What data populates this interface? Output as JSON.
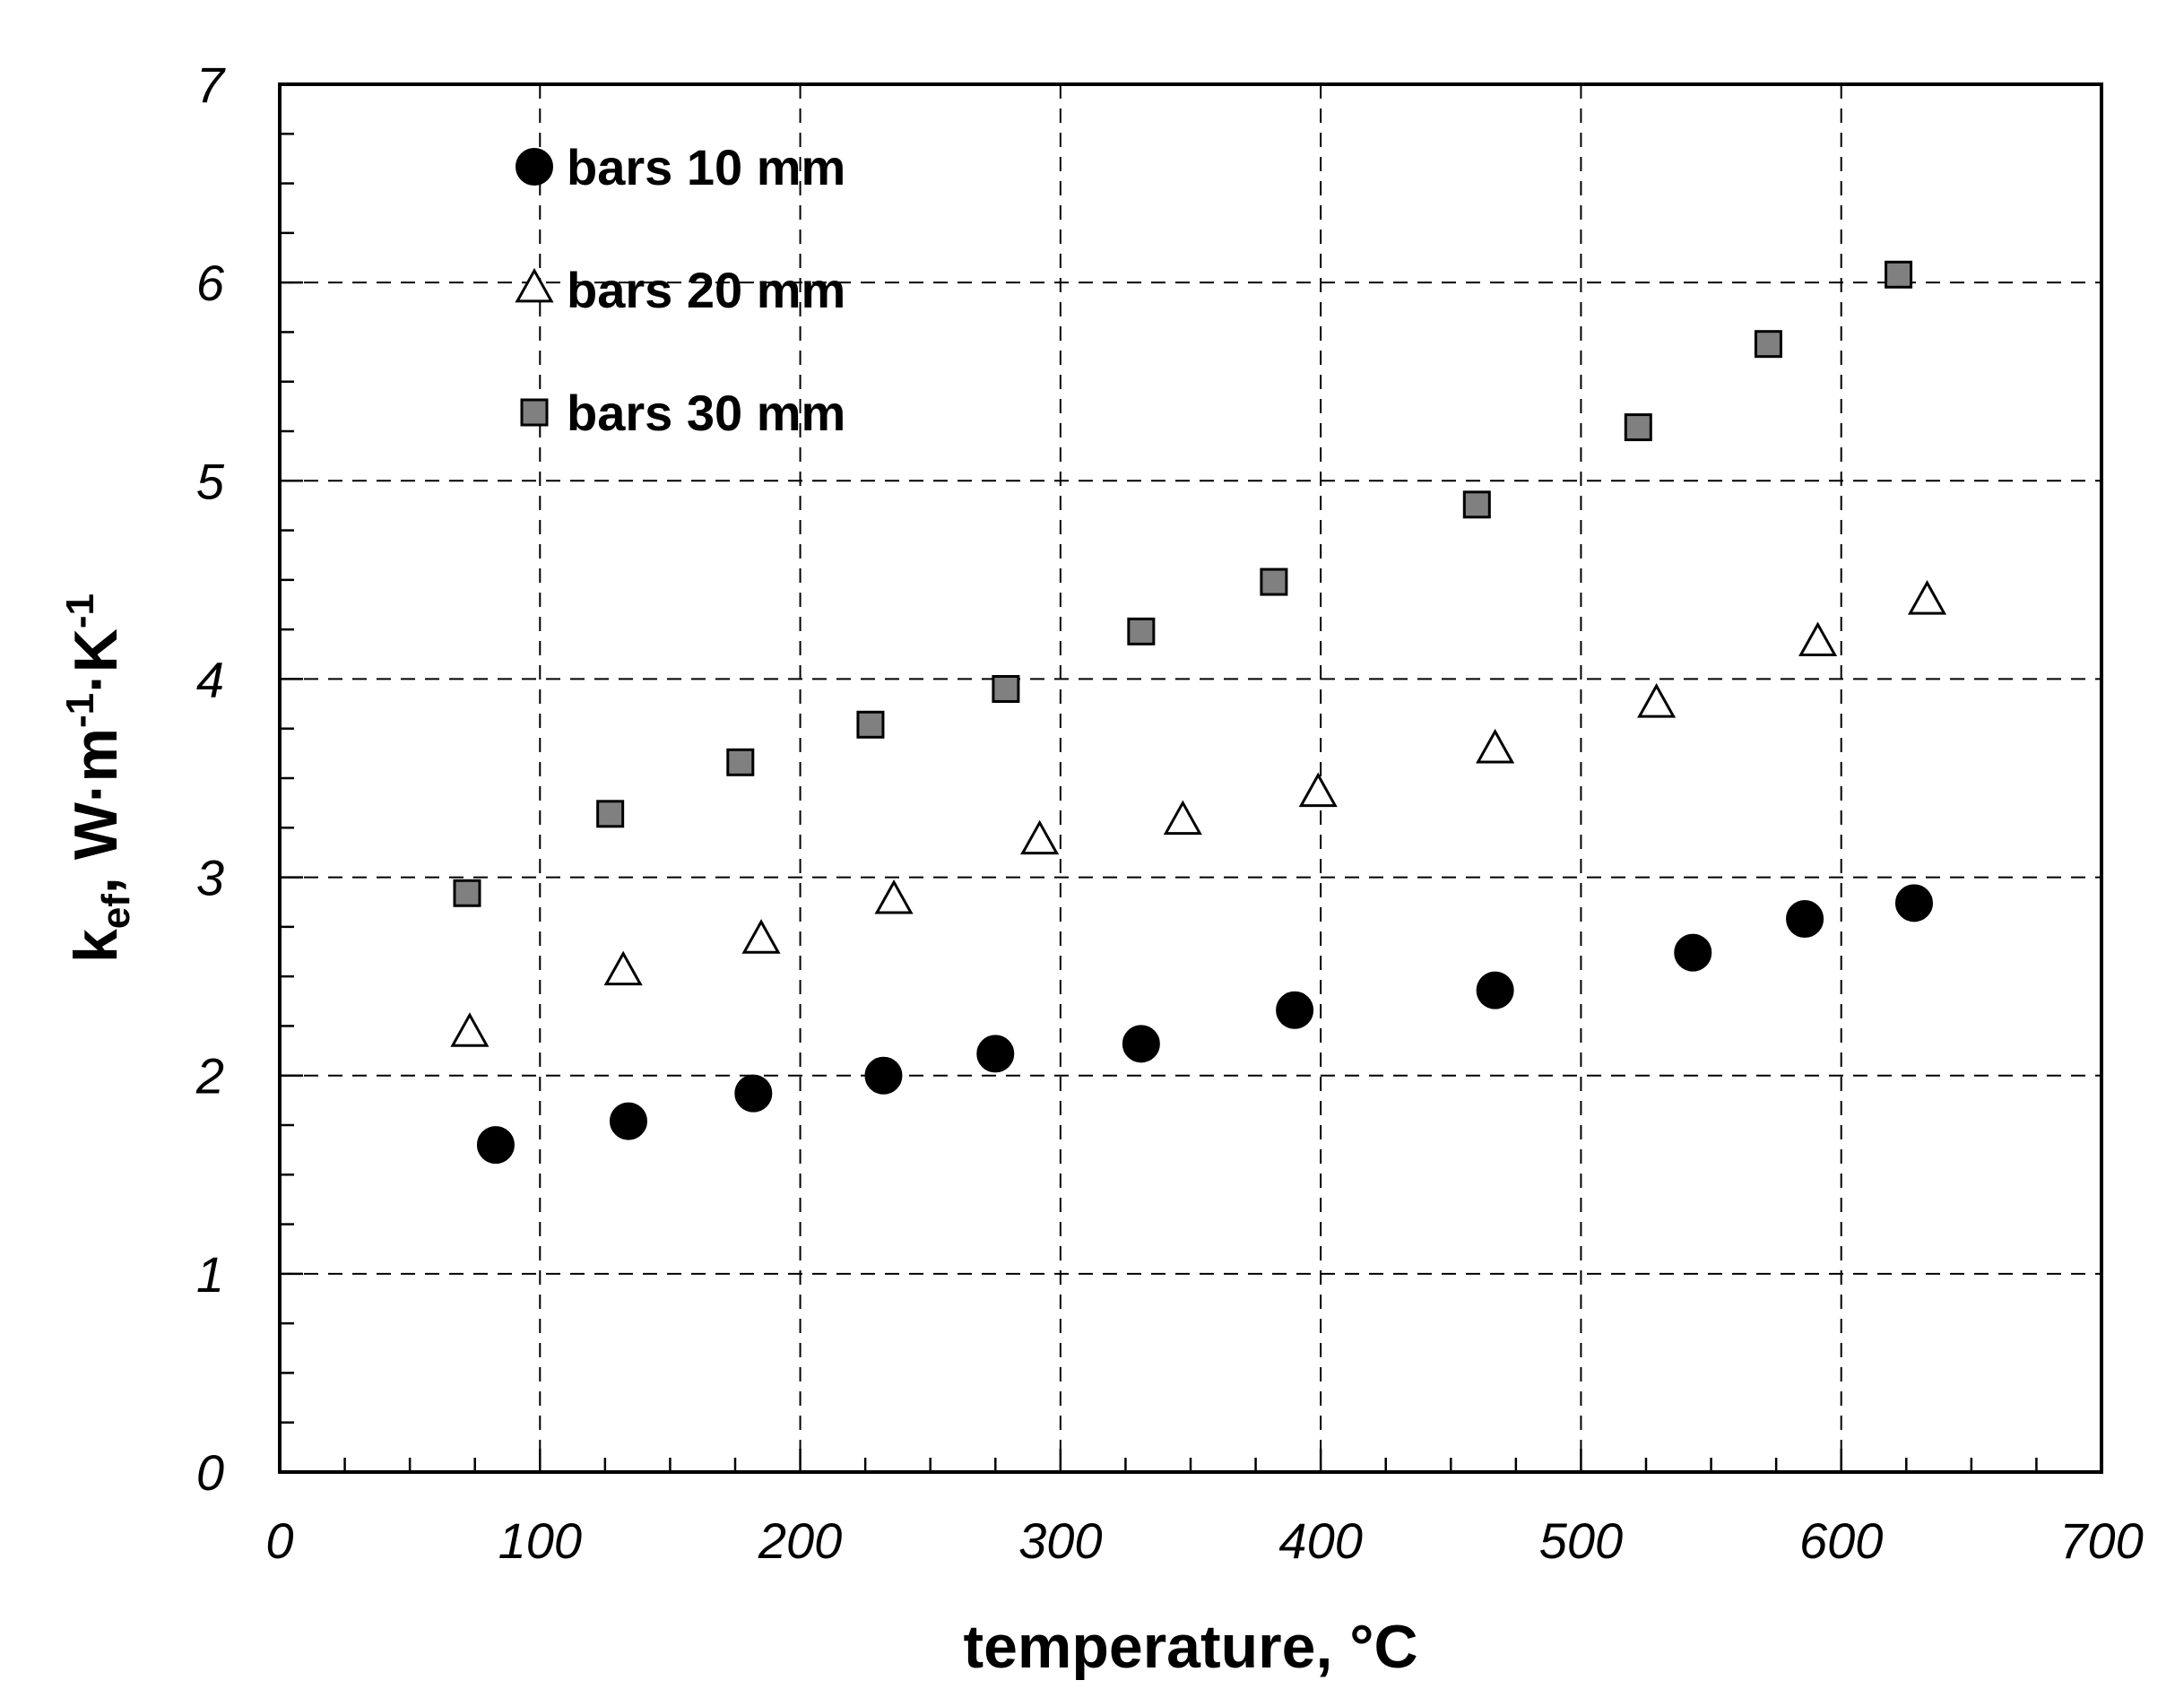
{
  "chart_data": {
    "type": "scatter",
    "title": "",
    "xlabel": "temperature, °C",
    "ylabel": {
      "k": "k",
      "k_sub": "ef",
      "rest_1": ", W·m",
      "sup_1": "-1",
      "rest_2": "·K",
      "sup_2": "-1"
    },
    "xlim": [
      0,
      700
    ],
    "ylim": [
      0,
      7
    ],
    "x_ticks": [
      "0",
      "100",
      "200",
      "300",
      "400",
      "500",
      "600",
      "700"
    ],
    "y_ticks": [
      "0",
      "1",
      "2",
      "3",
      "4",
      "5",
      "6",
      "7"
    ],
    "grid": true,
    "legend_position": "top-left",
    "series": [
      {
        "name": "bars 10 mm",
        "marker": "circle",
        "fill": "#000000",
        "x": [
          83,
          134,
          182,
          232,
          275,
          331,
          390,
          467,
          543,
          586,
          628
        ],
        "y": [
          1.65,
          1.77,
          1.91,
          2.0,
          2.11,
          2.16,
          2.33,
          2.43,
          2.62,
          2.79,
          2.87
        ]
      },
      {
        "name": "bars 20 mm",
        "marker": "triangle",
        "fill": "#ffffff",
        "x": [
          73,
          132,
          185,
          236,
          292,
          347,
          399,
          467,
          529,
          591,
          633
        ],
        "y": [
          2.21,
          2.52,
          2.68,
          2.88,
          3.18,
          3.28,
          3.42,
          3.64,
          3.87,
          4.18,
          4.39
        ]
      },
      {
        "name": "bars 30 mm",
        "marker": "square",
        "fill": "#808080",
        "x": [
          72,
          127,
          177,
          227,
          279,
          331,
          382,
          460,
          522,
          572,
          622
        ],
        "y": [
          2.92,
          3.32,
          3.58,
          3.77,
          3.95,
          4.24,
          4.49,
          4.88,
          5.27,
          5.69,
          6.04
        ]
      }
    ]
  }
}
